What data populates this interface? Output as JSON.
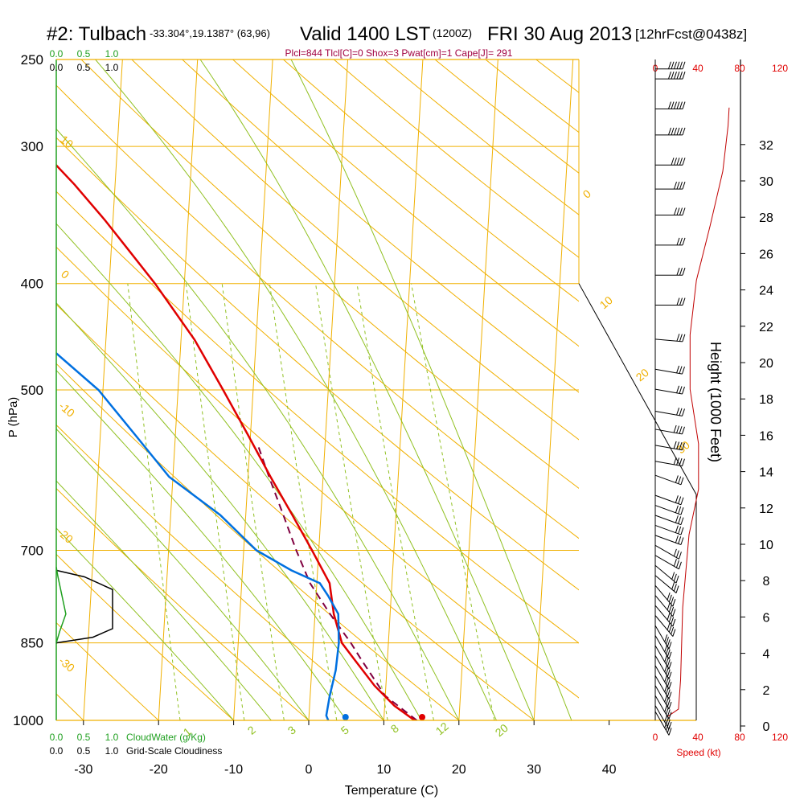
{
  "header": {
    "station": "#2: Tulbach",
    "coords": "-33.304°,19.1387° (63,96)",
    "valid": "Valid 1400 LST",
    "zulu": "(1200Z)",
    "date": "FRI 30 Aug 2013",
    "fcst": "[12hrFcst@0438z]",
    "params": "Plcl=844 Tlcl[C]=0 Shox=3 Pwat[cm]=1 Cape[J]= 291"
  },
  "colors": {
    "isotherm": "#f0b000",
    "adiabat": "#90c020",
    "mixing": "#90c020",
    "temp": "#e00000",
    "dewpoint": "#0070e0",
    "parcel": "#800040",
    "cloud": "#20a020",
    "wind": "#e00000",
    "title_params": "#a00040"
  },
  "chart_data": {
    "type": "line",
    "title": "Skew-T log-P sounding",
    "xlabel": "Temperature (C)",
    "ylabel": "P (hPa)",
    "xlim": [
      -35,
      35
    ],
    "plim": [
      1000,
      250
    ],
    "x_ticks": [
      -30,
      -20,
      -10,
      0,
      10,
      20,
      30,
      40
    ],
    "p_ticks": [
      250,
      300,
      400,
      500,
      700,
      850,
      1000
    ],
    "temperature": [
      {
        "p": 1000,
        "t": 14.1
      },
      {
        "p": 970,
        "t": 11.3
      },
      {
        "p": 930,
        "t": 8.5
      },
      {
        "p": 880,
        "t": 5.6
      },
      {
        "p": 850,
        "t": 3.8
      },
      {
        "p": 800,
        "t": 2.5
      },
      {
        "p": 750,
        "t": 1.7
      },
      {
        "p": 700,
        "t": -0.9
      },
      {
        "p": 650,
        "t": -3.8
      },
      {
        "p": 600,
        "t": -7.0
      },
      {
        "p": 550,
        "t": -10.3
      },
      {
        "p": 500,
        "t": -14.0
      },
      {
        "p": 450,
        "t": -18.2
      },
      {
        "p": 400,
        "t": -23.9
      },
      {
        "p": 370,
        "t": -28.1
      },
      {
        "p": 350,
        "t": -31.1
      },
      {
        "p": 325,
        "t": -35.4
      },
      {
        "p": 300,
        "t": -40.5
      },
      {
        "p": 275,
        "t": -46.4
      },
      {
        "p": 260,
        "t": -50.3
      }
    ],
    "dewpoint": [
      {
        "p": 1000,
        "t": 2.6
      },
      {
        "p": 990,
        "t": 2.3
      },
      {
        "p": 950,
        "t": 2.6
      },
      {
        "p": 900,
        "t": 3.2
      },
      {
        "p": 850,
        "t": 3.4
      },
      {
        "p": 800,
        "t": 3.1
      },
      {
        "p": 770,
        "t": 1.6
      },
      {
        "p": 750,
        "t": 0.4
      },
      {
        "p": 730,
        "t": -3.5
      },
      {
        "p": 700,
        "t": -8.3
      },
      {
        "p": 650,
        "t": -13.4
      },
      {
        "p": 600,
        "t": -20.5
      },
      {
        "p": 550,
        "t": -25.3
      },
      {
        "p": 500,
        "t": -30.6
      },
      {
        "p": 450,
        "t": -38.7
      },
      {
        "p": 400,
        "t": -51.8
      },
      {
        "p": 380,
        "t": -58.4
      }
    ],
    "dewpoint_aloft": [
      {
        "p": 345,
        "t": -78.6
      },
      {
        "p": 325,
        "t": -71.4
      },
      {
        "p": 300,
        "t": -70.8
      },
      {
        "p": 280,
        "t": -69.3
      },
      {
        "p": 260,
        "t": -68.2
      }
    ],
    "parcel": [
      {
        "p": 1000,
        "t": 14.4
      },
      {
        "p": 950,
        "t": 10.0
      },
      {
        "p": 880,
        "t": 6.5
      },
      {
        "p": 850,
        "t": 5.0
      },
      {
        "p": 800,
        "t": 2.0
      },
      {
        "p": 750,
        "t": -0.9
      },
      {
        "p": 700,
        "t": -3.0
      },
      {
        "p": 650,
        "t": -5.0
      },
      {
        "p": 600,
        "t": -7.2
      },
      {
        "p": 560,
        "t": -9.0
      }
    ],
    "surface_temp_marker": {
      "p": 1000,
      "t": 15.1
    },
    "surface_dew_marker": {
      "p": 1000,
      "t": 4.9
    },
    "isotherm_labels": [
      "10",
      "0",
      "-10",
      "-20",
      "-30",
      "0",
      "10",
      "20",
      "30"
    ],
    "mixing_ratio_labels": [
      "1",
      "2",
      "3",
      "5",
      "8",
      "12",
      "20"
    ],
    "cloud_axis": {
      "ticks": [
        "0.0",
        "0.5",
        "1.0"
      ],
      "water_label": "CloudWater (g/Kg)",
      "cover_label": "Grid-Scale Cloudiness"
    },
    "cloud_cover": [
      {
        "p": 730,
        "v": 0.0
      },
      {
        "p": 740,
        "v": 0.5
      },
      {
        "p": 760,
        "v": 1.0
      },
      {
        "p": 825,
        "v": 1.0
      },
      {
        "p": 840,
        "v": 0.65
      },
      {
        "p": 850,
        "v": 0.0
      }
    ],
    "cloud_water": [
      {
        "p": 725,
        "v": 0.0
      },
      {
        "p": 740,
        "v": 0.03
      },
      {
        "p": 800,
        "v": 0.17
      },
      {
        "p": 830,
        "v": 0.06
      },
      {
        "p": 850,
        "v": 0.0
      }
    ],
    "height_axis": {
      "label": "Height (1000 Feet)",
      "ticks": [
        0,
        2,
        4,
        6,
        8,
        10,
        12,
        14,
        16,
        18,
        20,
        22,
        24,
        26,
        28,
        30,
        32
      ]
    },
    "speed_axis": {
      "label": "Speed (kt)",
      "ticks": [
        0,
        40,
        80,
        120
      ]
    },
    "wind_speed_profile": [
      {
        "h": 0.0,
        "s": 12
      },
      {
        "h": 0.4,
        "s": 22
      },
      {
        "h": 2,
        "s": 24
      },
      {
        "h": 6,
        "s": 26
      },
      {
        "h": 10,
        "s": 32
      },
      {
        "h": 12.5,
        "s": 41
      },
      {
        "h": 15,
        "s": 41
      },
      {
        "h": 18,
        "s": 33
      },
      {
        "h": 21,
        "s": 33
      },
      {
        "h": 24,
        "s": 39
      },
      {
        "h": 27,
        "s": 52
      },
      {
        "h": 30,
        "s": 64
      },
      {
        "h": 32.5,
        "s": 69
      },
      {
        "h": 33.5,
        "s": 70
      }
    ],
    "wind_barbs": [
      {
        "h": 0.2,
        "dir": 330,
        "spd": 40
      },
      {
        "h": 0.5,
        "dir": 330,
        "spd": 40
      },
      {
        "h": 1.0,
        "dir": 330,
        "spd": 40
      },
      {
        "h": 1.5,
        "dir": 330,
        "spd": 40
      },
      {
        "h": 2.0,
        "dir": 330,
        "spd": 40
      },
      {
        "h": 2.5,
        "dir": 330,
        "spd": 40
      },
      {
        "h": 3.0,
        "dir": 330,
        "spd": 40
      },
      {
        "h": 3.5,
        "dir": 330,
        "spd": 40
      },
      {
        "h": 4.0,
        "dir": 330,
        "spd": 40
      },
      {
        "h": 4.5,
        "dir": 330,
        "spd": 40
      },
      {
        "h": 5.0,
        "dir": 320,
        "spd": 40
      },
      {
        "h": 5.5,
        "dir": 320,
        "spd": 40
      },
      {
        "h": 6.0,
        "dir": 320,
        "spd": 40
      },
      {
        "h": 6.5,
        "dir": 320,
        "spd": 40
      },
      {
        "h": 7.0,
        "dir": 310,
        "spd": 35
      },
      {
        "h": 7.5,
        "dir": 310,
        "spd": 35
      },
      {
        "h": 8.0,
        "dir": 300,
        "spd": 35
      },
      {
        "h": 8.5,
        "dir": 300,
        "spd": 35
      },
      {
        "h": 9.0,
        "dir": 290,
        "spd": 35
      },
      {
        "h": 9.5,
        "dir": 290,
        "spd": 35
      },
      {
        "h": 10.0,
        "dir": 290,
        "spd": 35
      },
      {
        "h": 10.5,
        "dir": 290,
        "spd": 35
      },
      {
        "h": 11.0,
        "dir": 290,
        "spd": 35
      },
      {
        "h": 12.0,
        "dir": 290,
        "spd": 35
      },
      {
        "h": 12.7,
        "dir": 280,
        "spd": 40
      },
      {
        "h": 13.5,
        "dir": 280,
        "spd": 40
      },
      {
        "h": 14.3,
        "dir": 280,
        "spd": 40
      },
      {
        "h": 15.2,
        "dir": 280,
        "spd": 35
      },
      {
        "h": 16.3,
        "dir": 280,
        "spd": 35
      },
      {
        "h": 17.3,
        "dir": 280,
        "spd": 35
      },
      {
        "h": 18.8,
        "dir": 275,
        "spd": 35
      },
      {
        "h": 20.5,
        "dir": 270,
        "spd": 35
      },
      {
        "h": 22.0,
        "dir": 270,
        "spd": 35
      },
      {
        "h": 23.5,
        "dir": 270,
        "spd": 35
      },
      {
        "h": 25.0,
        "dir": 270,
        "spd": 40
      },
      {
        "h": 26.3,
        "dir": 270,
        "spd": 45
      },
      {
        "h": 27.5,
        "dir": 270,
        "spd": 55
      },
      {
        "h": 29.0,
        "dir": 270,
        "spd": 60
      },
      {
        "h": 30.3,
        "dir": 270,
        "spd": 60
      },
      {
        "h": 31.8,
        "dir": 270,
        "spd": 60
      },
      {
        "h": 32.3,
        "dir": 270,
        "spd": 60
      }
    ]
  }
}
